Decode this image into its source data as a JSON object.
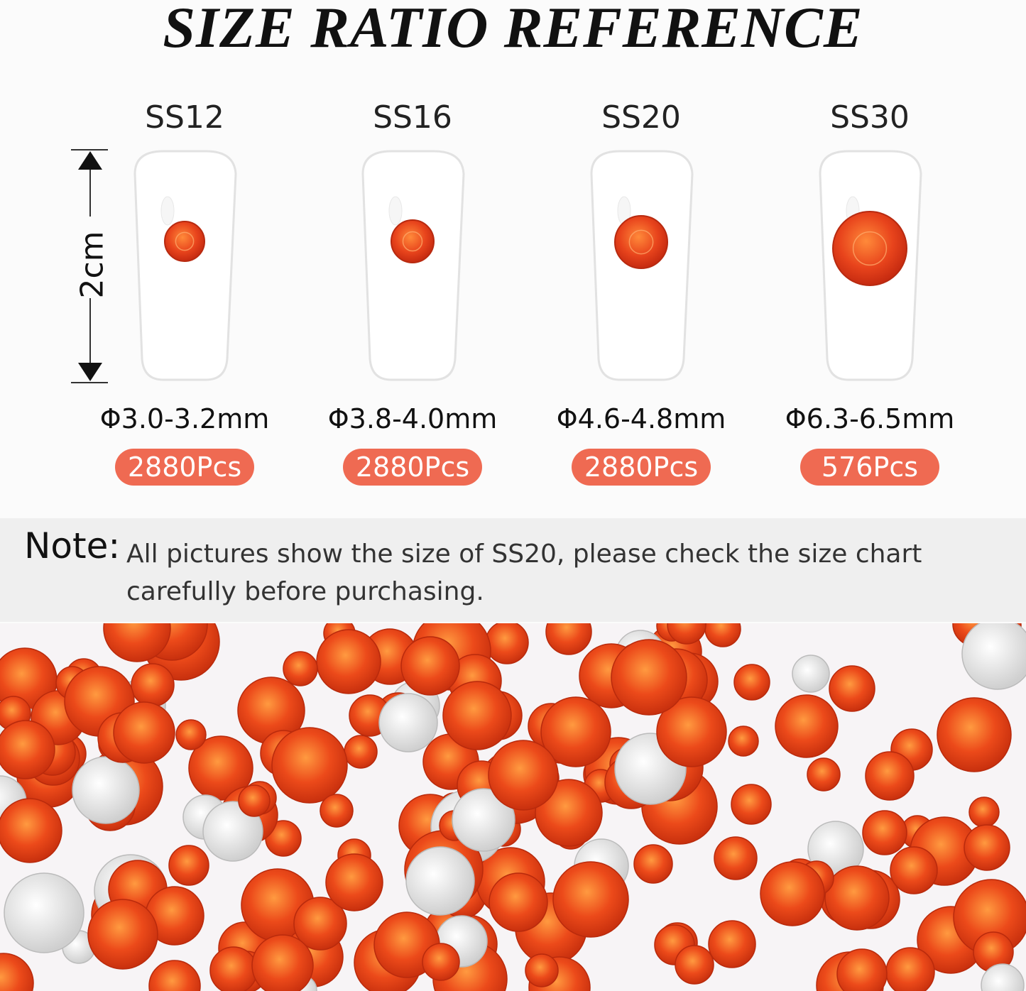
{
  "title": "SIZE RATIO REFERENCE",
  "height_marker": "2cm",
  "sizes": [
    {
      "name": "SS12",
      "diameter": "Φ3.0-3.2mm",
      "count": "2880Pcs"
    },
    {
      "name": "SS16",
      "diameter": "Φ3.8-4.0mm",
      "count": "2880Pcs"
    },
    {
      "name": "SS20",
      "diameter": "Φ4.6-4.8mm",
      "count": "2880Pcs"
    },
    {
      "name": "SS30",
      "diameter": "Φ6.3-6.5mm",
      "count": "576Pcs"
    }
  ],
  "note": {
    "label": "Note:",
    "text": "All pictures show the size of SS20, please check the size chart carefully before purchasing."
  },
  "colors": {
    "accent": "#ef6a52",
    "gem": "#e8441c",
    "band": "#efefef"
  }
}
